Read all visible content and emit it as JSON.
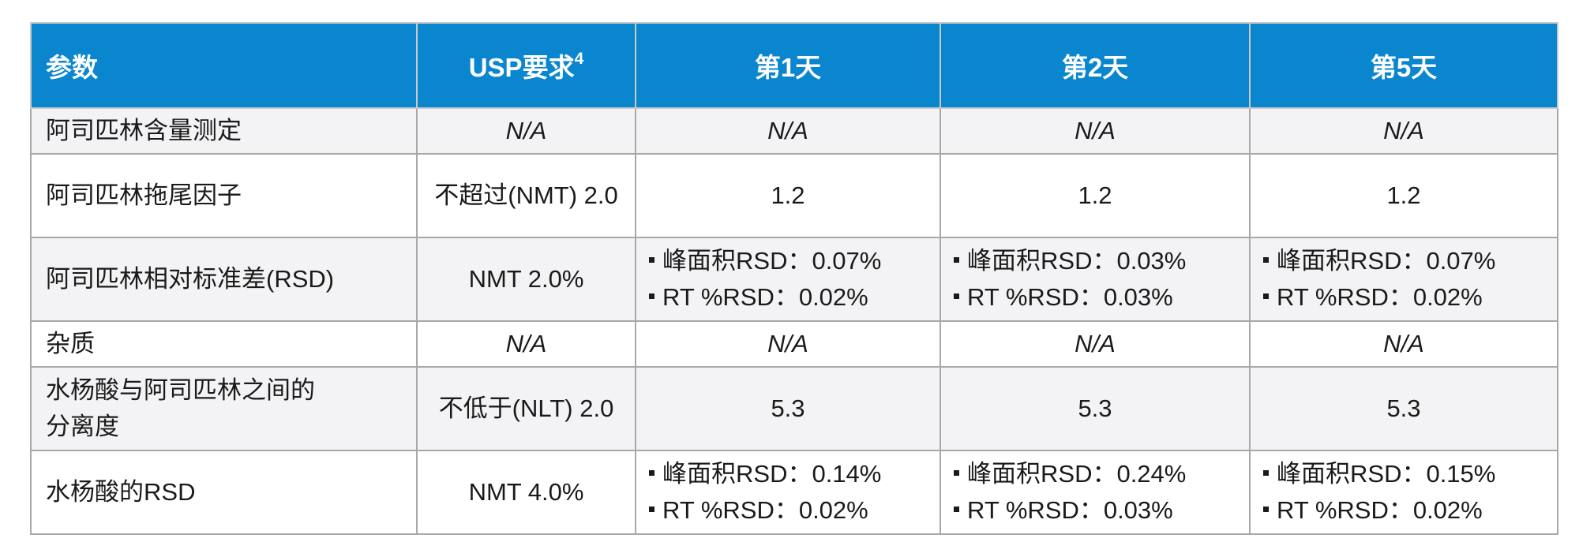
{
  "table": {
    "headers": [
      "参数",
      "USP要求",
      "第1天",
      "第2天",
      "第5天"
    ],
    "header_sup": "4",
    "rows": [
      {
        "param": "阿司匹林含量测定",
        "usp": "N/A",
        "d1": "N/A",
        "d2": "N/A",
        "d5": "N/A"
      },
      {
        "param": "阿司匹林拖尾因子",
        "usp": "不超过(NMT) 2.0",
        "d1": "1.2",
        "d2": "1.2",
        "d5": "1.2"
      },
      {
        "param": "阿司匹林相对标准差(RSD)",
        "usp": "NMT 2.0%",
        "d1": [
          "峰面积RSD：0.07%",
          "RT %RSD：0.02%"
        ],
        "d2": [
          "峰面积RSD：0.03%",
          "RT %RSD：0.03%"
        ],
        "d5": [
          "峰面积RSD：0.07%",
          "RT %RSD：0.02%"
        ]
      },
      {
        "param": "杂质",
        "usp": "N/A",
        "d1": "N/A",
        "d2": "N/A",
        "d5": "N/A"
      },
      {
        "param": [
          "水杨酸与阿司匹林之间的",
          "分离度"
        ],
        "usp": "不低于(NLT) 2.0",
        "d1": "5.3",
        "d2": "5.3",
        "d5": "5.3"
      },
      {
        "param": "水杨酸的RSD",
        "usp": "NMT 4.0%",
        "d1": [
          "峰面积RSD：0.14%",
          "RT %RSD：0.02%"
        ],
        "d2": [
          "峰面积RSD：0.24%",
          "RT %RSD：0.03%"
        ],
        "d5": [
          "峰面积RSD：0.15%",
          "RT %RSD：0.02%"
        ]
      }
    ]
  }
}
